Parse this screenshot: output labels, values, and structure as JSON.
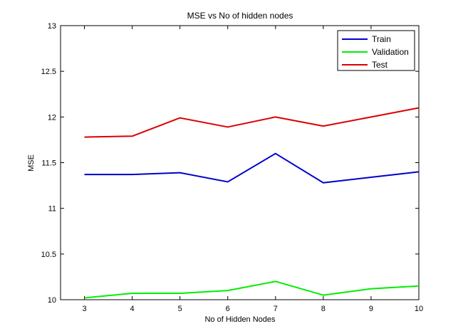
{
  "chart_data": {
    "type": "line",
    "title": "MSE vs No of hidden nodes",
    "xlabel": "No of Hidden Nodes",
    "ylabel": "MSE",
    "xlim": [
      2.5,
      10
    ],
    "ylim": [
      10,
      13
    ],
    "xticks": [
      3,
      4,
      5,
      6,
      7,
      8,
      9,
      10
    ],
    "yticks": [
      10,
      10.5,
      11,
      11.5,
      12,
      12.5,
      13
    ],
    "ytick_labels": [
      "10",
      "10.5",
      "11",
      "11.5",
      "12",
      "12.5",
      "13"
    ],
    "grid": false,
    "legend_position": "top-right",
    "x": [
      3,
      4,
      5,
      6,
      7,
      8,
      9,
      10
    ],
    "series": [
      {
        "name": "Train",
        "color": "#0000cc",
        "values": [
          11.37,
          11.37,
          11.39,
          11.29,
          11.6,
          11.28,
          11.34,
          11.4
        ]
      },
      {
        "name": "Validation",
        "color": "#00ee00",
        "values": [
          10.02,
          10.07,
          10.07,
          10.1,
          10.2,
          10.05,
          10.12,
          10.15
        ]
      },
      {
        "name": "Test",
        "color": "#dd0000",
        "values": [
          11.78,
          11.79,
          11.99,
          11.89,
          12.0,
          11.9,
          12.0,
          12.1
        ]
      }
    ]
  }
}
